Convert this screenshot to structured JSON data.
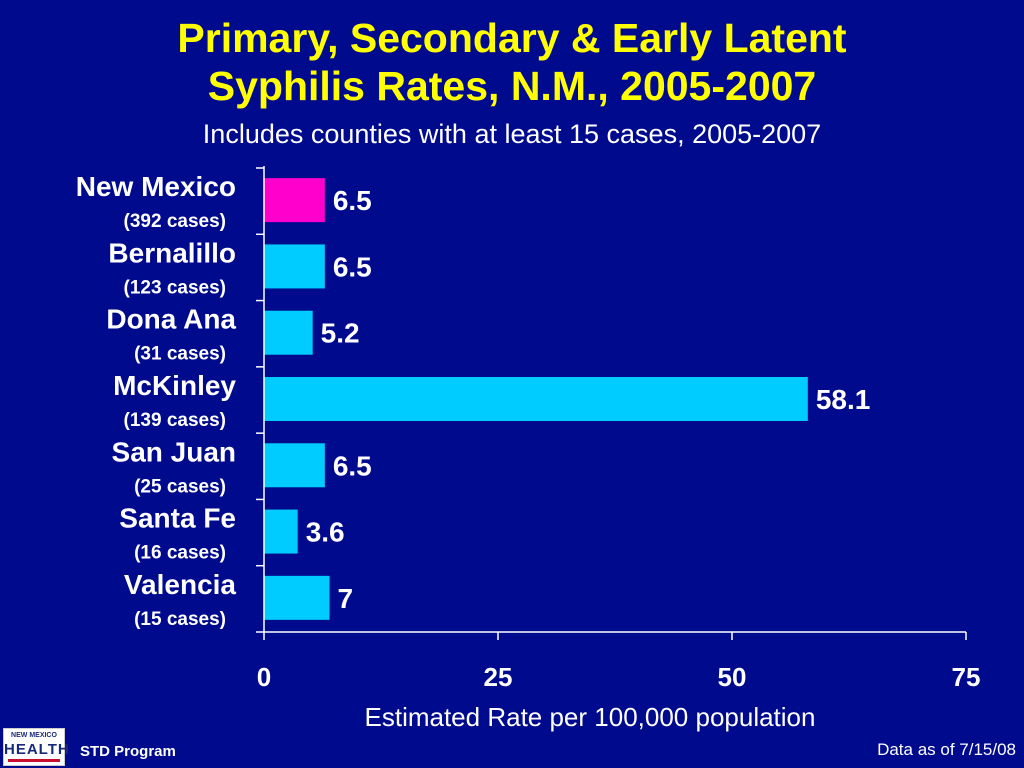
{
  "title": {
    "line1": "Primary, Secondary & Early Latent",
    "line2": "Syphilis Rates, N.M., 2005-2007"
  },
  "subtitle": "Includes counties with at least 15 cases, 2005-2007",
  "footer": {
    "program": "STD Program",
    "data_as_of": "Data as of 7/15/08",
    "logo_top": "NEW MEXICO",
    "logo_main": "HEALTH"
  },
  "colors": {
    "background": "#000a8c",
    "highlight_bar": "#ff00cc",
    "bar": "#00ccff",
    "title": "#ffff00"
  },
  "chart_data": {
    "type": "bar",
    "orientation": "horizontal",
    "categories": [
      "New Mexico",
      "Bernalillo",
      "Dona Ana",
      "McKinley",
      "San Juan",
      "Santa Fe",
      "Valencia"
    ],
    "case_labels": [
      "(392 cases)",
      "(123 cases)",
      "(31 cases)",
      "(139 cases)",
      "(25 cases)",
      "(16 cases)",
      "(15 cases)"
    ],
    "values": [
      6.5,
      6.5,
      5.2,
      58.1,
      6.5,
      3.6,
      7
    ],
    "value_labels": [
      "6.5",
      "6.5",
      "5.2",
      "58.1",
      "6.5",
      "3.6",
      "7"
    ],
    "highlight_index": 0,
    "xlabel": "Estimated Rate per 100,000 population",
    "xlim": [
      0,
      75
    ],
    "xticks": [
      0,
      25,
      50,
      75
    ],
    "grid": false
  }
}
